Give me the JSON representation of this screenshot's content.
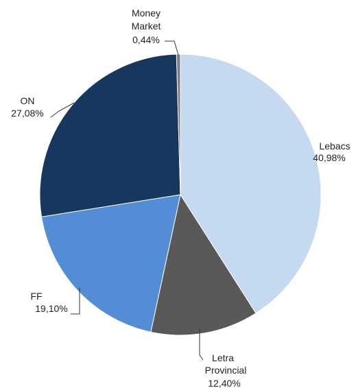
{
  "chart_data": {
    "type": "pie",
    "title": "",
    "slices": [
      {
        "label_lines": [
          "Lebacs"
        ],
        "value_label": "40,98%",
        "value": 40.98,
        "color": "#c5d9f1"
      },
      {
        "label_lines": [
          "Letra",
          "Provincial"
        ],
        "value_label": "12,40%",
        "value": 12.4,
        "color": "#595959"
      },
      {
        "label_lines": [
          "FF"
        ],
        "value_label": "19,10%",
        "value": 19.1,
        "color": "#538dd5"
      },
      {
        "label_lines": [
          "ON"
        ],
        "value_label": "27,08%",
        "value": 27.08,
        "color": "#17375e"
      },
      {
        "label_lines": [
          "Money",
          "Market"
        ],
        "value_label": "0,44%",
        "value": 0.44,
        "color": "#7f7f7f"
      }
    ],
    "start_angle_deg": 0,
    "direction": "clockwise",
    "legend": "none",
    "data_labels": "outside-with-leader-lines"
  }
}
